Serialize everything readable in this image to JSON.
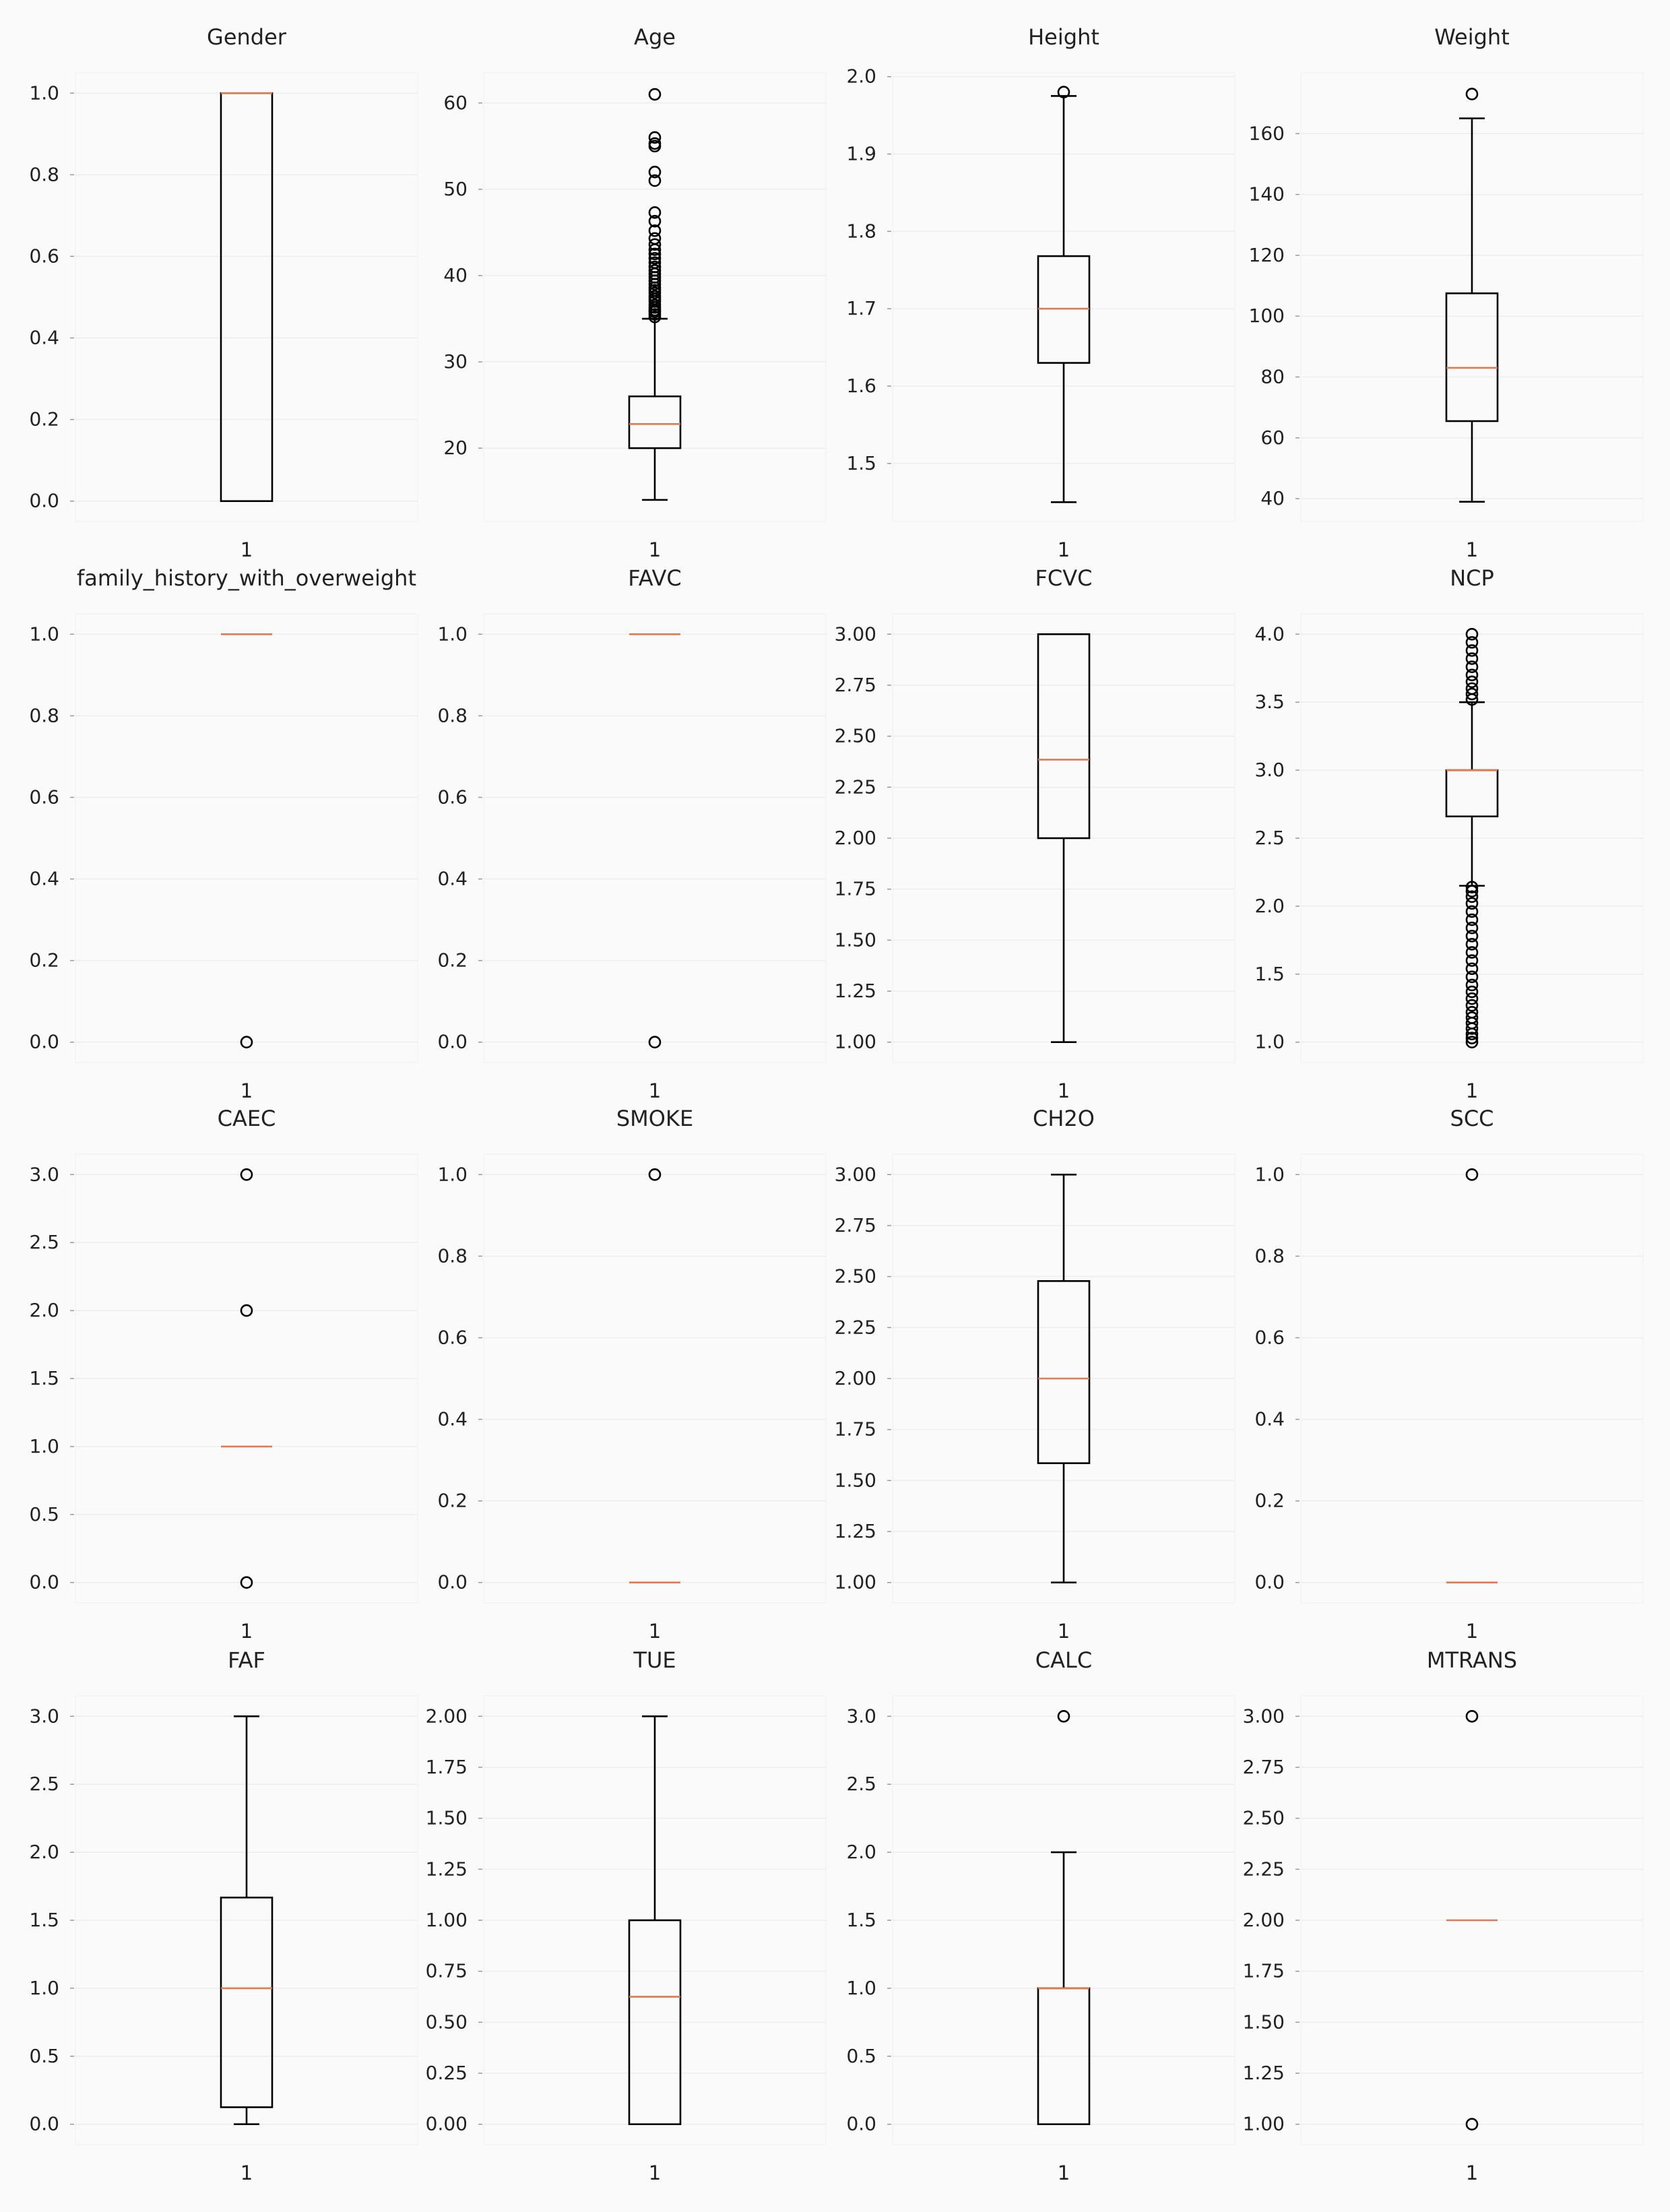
{
  "figure": {
    "background": "#fafafa",
    "grid_color": "#ededed",
    "median_color": "#e07a4f",
    "box_color": "#000000"
  },
  "chart_data": [
    {
      "type": "box",
      "title": "Gender",
      "category": "1",
      "yticks": [
        0.0,
        0.2,
        0.4,
        0.6,
        0.8,
        1.0
      ],
      "ylim": [
        -0.05,
        1.05
      ],
      "min": 0,
      "q1": 0,
      "median": 1,
      "q3": 1,
      "max": 1,
      "outliers": []
    },
    {
      "type": "box",
      "title": "Age",
      "category": "1",
      "yticks": [
        20,
        30,
        40,
        50,
        60
      ],
      "ylim": [
        11.5,
        63.5
      ],
      "min": 14,
      "q1": 20,
      "median": 22.8,
      "q3": 26,
      "max": 35,
      "outliers": [
        35.2,
        35.5,
        35.8,
        36,
        36.3,
        36.6,
        37,
        37.3,
        37.6,
        38,
        38.3,
        38.6,
        39,
        39.4,
        39.8,
        40.2,
        40.6,
        41,
        41.5,
        42,
        42.5,
        43,
        43.6,
        44.3,
        45.2,
        46.3,
        47.3,
        51,
        52,
        55,
        55.3,
        56,
        61
      ]
    },
    {
      "type": "box",
      "title": "Height",
      "category": "1",
      "yticks": [
        1.5,
        1.6,
        1.7,
        1.8,
        1.9,
        2.0
      ],
      "ylim": [
        1.425,
        2.005
      ],
      "min": 1.45,
      "q1": 1.63,
      "median": 1.7,
      "q3": 1.768,
      "max": 1.975,
      "outliers": [
        1.98
      ]
    },
    {
      "type": "box",
      "title": "Weight",
      "category": "1",
      "yticks": [
        40,
        60,
        80,
        100,
        120,
        140,
        160
      ],
      "ylim": [
        32.5,
        180
      ],
      "min": 39,
      "q1": 65.5,
      "median": 83,
      "q3": 107.5,
      "max": 165,
      "outliers": [
        173
      ]
    },
    {
      "type": "box",
      "title": "family_history_with_overweight",
      "category": "1",
      "yticks": [
        0.0,
        0.2,
        0.4,
        0.6,
        0.8,
        1.0
      ],
      "ylim": [
        -0.05,
        1.05
      ],
      "min": 1,
      "q1": 1,
      "median": 1,
      "q3": 1,
      "max": 1,
      "outliers": [
        0
      ]
    },
    {
      "type": "box",
      "title": "FAVC",
      "category": "1",
      "yticks": [
        0.0,
        0.2,
        0.4,
        0.6,
        0.8,
        1.0
      ],
      "ylim": [
        -0.05,
        1.05
      ],
      "min": 1,
      "q1": 1,
      "median": 1,
      "q3": 1,
      "max": 1,
      "outliers": [
        0
      ]
    },
    {
      "type": "box",
      "title": "FCVC",
      "category": "1",
      "yticks": [
        1.0,
        1.25,
        1.5,
        1.75,
        2.0,
        2.25,
        2.5,
        2.75,
        3.0
      ],
      "ylim": [
        0.9,
        3.1
      ],
      "min": 1,
      "q1": 2,
      "median": 2.385,
      "q3": 3,
      "max": 3,
      "outliers": []
    },
    {
      "type": "box",
      "title": "NCP",
      "category": "1",
      "yticks": [
        1.0,
        1.5,
        2.0,
        2.5,
        3.0,
        3.5,
        4.0
      ],
      "ylim": [
        0.85,
        4.15
      ],
      "min": 2.15,
      "q1": 2.66,
      "median": 3,
      "q3": 3,
      "max": 3.5,
      "outliers": [
        1,
        1.03,
        1.06,
        1.1,
        1.14,
        1.18,
        1.22,
        1.27,
        1.32,
        1.37,
        1.42,
        1.48,
        1.54,
        1.6,
        1.66,
        1.72,
        1.78,
        1.84,
        1.9,
        1.96,
        2.02,
        2.07,
        2.11,
        2.14,
        3.52,
        3.56,
        3.6,
        3.65,
        3.7,
        3.76,
        3.82,
        3.88,
        3.94,
        4.0
      ]
    },
    {
      "type": "box",
      "title": "CAEC",
      "category": "1",
      "yticks": [
        0.0,
        0.5,
        1.0,
        1.5,
        2.0,
        2.5,
        3.0
      ],
      "ylim": [
        -0.15,
        3.15
      ],
      "min": 1,
      "q1": 1,
      "median": 1,
      "q3": 1,
      "max": 1,
      "outliers": [
        0,
        2,
        3
      ]
    },
    {
      "type": "box",
      "title": "SMOKE",
      "category": "1",
      "yticks": [
        0.0,
        0.2,
        0.4,
        0.6,
        0.8,
        1.0
      ],
      "ylim": [
        -0.05,
        1.05
      ],
      "min": 0,
      "q1": 0,
      "median": 0,
      "q3": 0,
      "max": 0,
      "outliers": [
        1
      ]
    },
    {
      "type": "box",
      "title": "CH2O",
      "category": "1",
      "yticks": [
        1.0,
        1.25,
        1.5,
        1.75,
        2.0,
        2.25,
        2.5,
        2.75,
        3.0
      ],
      "ylim": [
        0.9,
        3.1
      ],
      "min": 1,
      "q1": 1.585,
      "median": 2,
      "q3": 2.478,
      "max": 3,
      "outliers": []
    },
    {
      "type": "box",
      "title": "SCC",
      "category": "1",
      "yticks": [
        0.0,
        0.2,
        0.4,
        0.6,
        0.8,
        1.0
      ],
      "ylim": [
        -0.05,
        1.05
      ],
      "min": 0,
      "q1": 0,
      "median": 0,
      "q3": 0,
      "max": 0,
      "outliers": [
        1
      ]
    },
    {
      "type": "box",
      "title": "FAF",
      "category": "1",
      "yticks": [
        0.0,
        0.5,
        1.0,
        1.5,
        2.0,
        2.5,
        3.0
      ],
      "ylim": [
        -0.15,
        3.15
      ],
      "min": 0,
      "q1": 0.125,
      "median": 1,
      "q3": 1.667,
      "max": 3,
      "outliers": []
    },
    {
      "type": "box",
      "title": "TUE",
      "category": "1",
      "yticks": [
        0.0,
        0.25,
        0.5,
        0.75,
        1.0,
        1.25,
        1.5,
        1.75,
        2.0
      ],
      "ylim": [
        -0.1,
        2.1
      ],
      "min": 0,
      "q1": 0,
      "median": 0.625,
      "q3": 1,
      "max": 2,
      "outliers": []
    },
    {
      "type": "box",
      "title": "CALC",
      "category": "1",
      "yticks": [
        0.0,
        0.5,
        1.0,
        1.5,
        2.0,
        2.5,
        3.0
      ],
      "ylim": [
        -0.15,
        3.15
      ],
      "min": 0,
      "q1": 0,
      "median": 1,
      "q3": 1,
      "max": 2,
      "outliers": [
        3
      ]
    },
    {
      "type": "box",
      "title": "MTRANS",
      "category": "1",
      "yticks": [
        1.0,
        1.25,
        1.5,
        1.75,
        2.0,
        2.25,
        2.5,
        2.75,
        3.0
      ],
      "ylim": [
        0.9,
        3.1
      ],
      "min": 2,
      "q1": 2,
      "median": 2,
      "q3": 2,
      "max": 2,
      "outliers": [
        1,
        3
      ]
    }
  ]
}
